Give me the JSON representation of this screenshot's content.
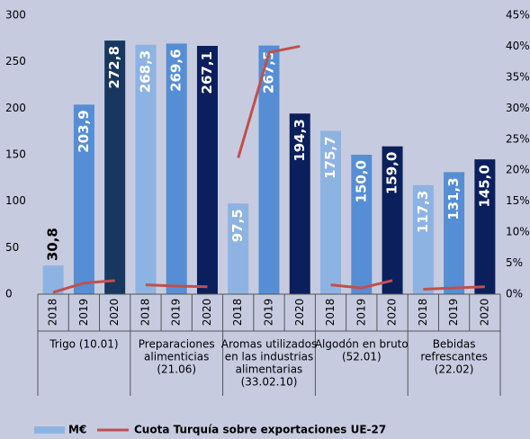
{
  "chart_data": {
    "type": "bar",
    "categories": [
      "2018",
      "2019",
      "2020",
      "2018",
      "2019",
      "2020",
      "2018",
      "2019",
      "2020",
      "2018",
      "2019",
      "2020",
      "2018",
      "2019",
      "2020"
    ],
    "groups": [
      [
        "Trigo (10.01)"
      ],
      [
        "Preparaciones",
        "alimenticias",
        "(21.06)"
      ],
      [
        "Aromas utilizados",
        "en las industrias",
        "alimentarias",
        "(33.02.10)"
      ],
      [
        "Algodón en bruto",
        "(52.01)"
      ],
      [
        "Bebidas",
        "refrescantes",
        "(22.02)"
      ]
    ],
    "series": [
      {
        "name": "M€",
        "color": "#8db3e2",
        "bar_colors": [
          "#8db3e2",
          "#558ed5",
          "#17375e",
          "#8db3e2",
          "#558ed5",
          "#0b1f5c",
          "#8db3e2",
          "#558ed5",
          "#0b1f5c",
          "#8db3e2",
          "#558ed5",
          "#0b1f5c",
          "#8db3e2",
          "#558ed5",
          "#0b1f5c"
        ],
        "values": [
          30.8,
          203.9,
          272.8,
          268.3,
          269.6,
          267.1,
          97.5,
          267.5,
          194.3,
          175.7,
          150.0,
          159.0,
          117.3,
          131.3,
          145.0
        ],
        "value_labels": [
          "30,8",
          "203,9",
          "272,8",
          "268,3",
          "269,6",
          "267,1",
          "97,5",
          "267,5",
          "194,3",
          "175,7",
          "150,0",
          "159,0",
          "117,3",
          "131,3",
          "145,0"
        ]
      },
      {
        "name": "Cuota Turquía sobre exportaciones UE-27",
        "color": "#c0504d",
        "axis": "y2",
        "values": [
          0.3,
          1.8,
          2.2,
          1.5,
          1.3,
          1.2,
          22,
          39,
          40,
          1.5,
          1.0,
          2.2,
          0.8,
          1.0,
          1.2
        ]
      }
    ],
    "ylim": [
      0,
      300
    ],
    "yticks": [
      0,
      50,
      100,
      150,
      200,
      250,
      300
    ],
    "y2lim": [
      0,
      45
    ],
    "y2ticks": [
      {
        "value": 0,
        "label": "0%"
      },
      {
        "value": 5,
        "label": "5%"
      },
      {
        "value": 10,
        "label": "10%"
      },
      {
        "value": 15,
        "label": "15%"
      },
      {
        "value": 20,
        "label": "20%"
      },
      {
        "value": 25,
        "label": "25%"
      },
      {
        "value": 30,
        "label": "30%"
      },
      {
        "value": 35,
        "label": "35%"
      },
      {
        "value": 40,
        "label": "40%"
      },
      {
        "value": 45,
        "label": "45%"
      }
    ],
    "legend": "bottom"
  }
}
